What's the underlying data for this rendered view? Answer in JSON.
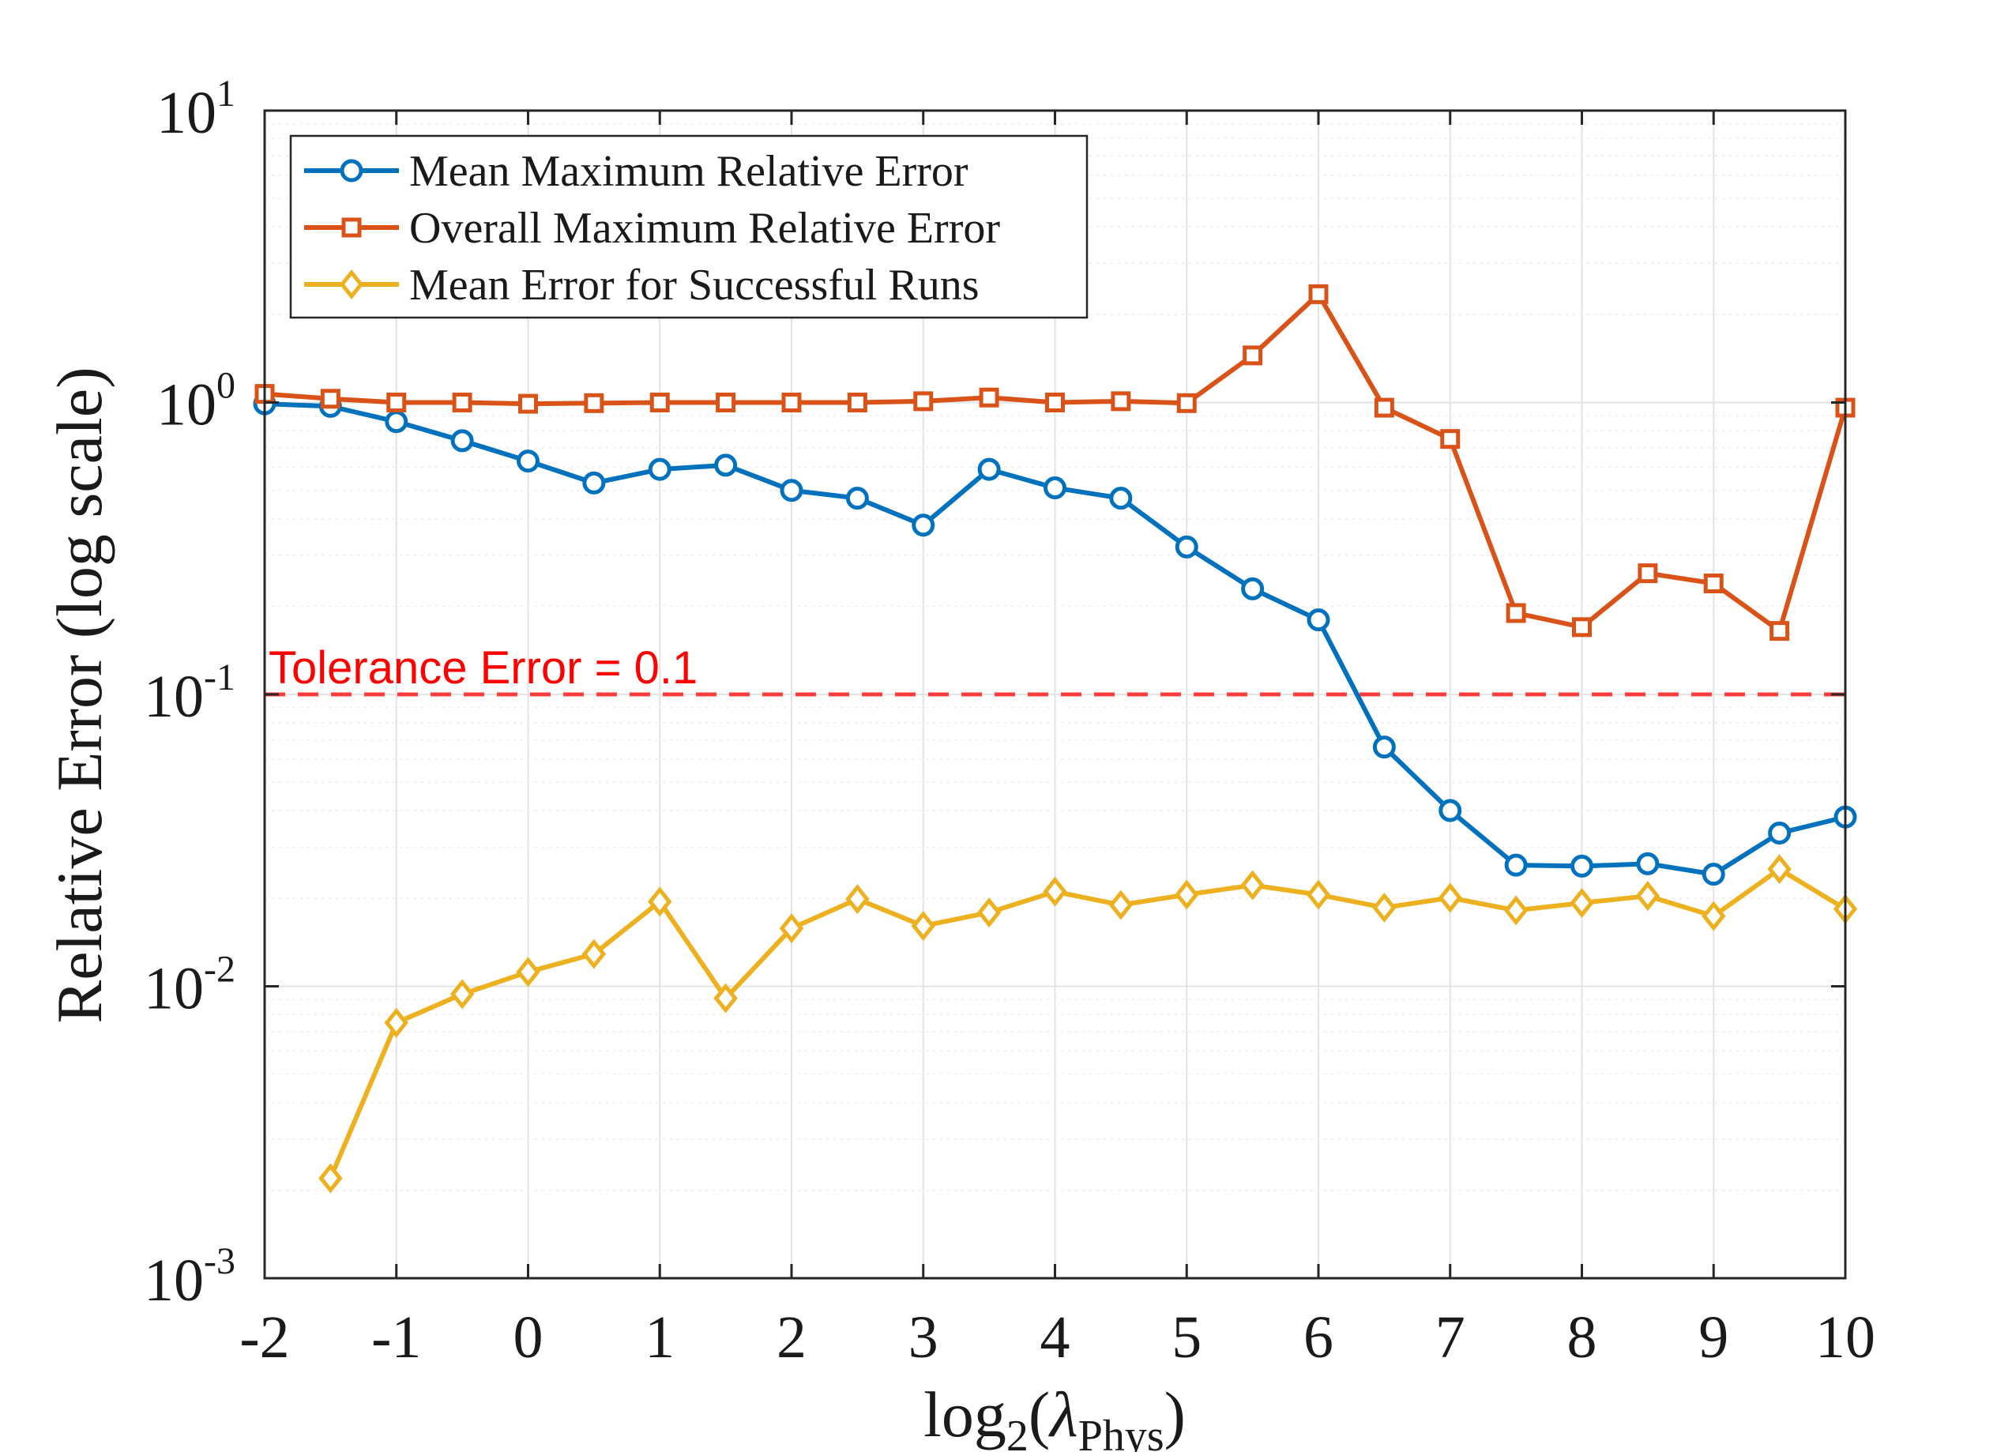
{
  "chart_data": {
    "type": "line",
    "title": "",
    "xlabel": {
      "prefix": "log",
      "sub": "2",
      "open": "(",
      "symbol": "λ",
      "symbol_sub": "Phys",
      "close": ")"
    },
    "ylabel": "Relative Error (log scale)",
    "xlim": [
      -2,
      10
    ],
    "ylim": [
      0.001,
      10
    ],
    "yscale": "log",
    "grid": true,
    "x_ticks": [
      -2,
      -1,
      0,
      1,
      2,
      3,
      4,
      5,
      6,
      7,
      8,
      9,
      10
    ],
    "x_tick_labels": [
      "-2",
      "-1",
      "0",
      "1",
      "2",
      "3",
      "4",
      "5",
      "6",
      "7",
      "8",
      "9",
      "10"
    ],
    "y_ticks": [
      {
        "value": 0.001,
        "base": "10",
        "exp": "-3"
      },
      {
        "value": 0.01,
        "base": "10",
        "exp": "-2"
      },
      {
        "value": 0.1,
        "base": "10",
        "exp": "-1"
      },
      {
        "value": 1,
        "base": "10",
        "exp": "0"
      },
      {
        "value": 10,
        "base": "10",
        "exp": "1"
      }
    ],
    "legend_position": "top-left",
    "series": [
      {
        "name": "Mean Maximum Relative Error",
        "color": "#0072BD",
        "marker": "circle",
        "x": [
          -2,
          -1.5,
          -1,
          -0.5,
          0,
          0.5,
          1,
          1.5,
          2,
          2.5,
          3,
          3.5,
          4,
          4.5,
          5,
          5.5,
          6,
          6.5,
          7,
          7.5,
          8,
          8.5,
          9,
          9.5,
          10
        ],
        "values": [
          0.99,
          0.97,
          0.86,
          0.74,
          0.63,
          0.53,
          0.59,
          0.61,
          0.5,
          0.47,
          0.38,
          0.59,
          0.51,
          0.47,
          0.32,
          0.23,
          0.18,
          0.066,
          0.04,
          0.026,
          0.0258,
          0.0263,
          0.0242,
          0.0335,
          0.038
        ]
      },
      {
        "name": "Overall Maximum Relative Error",
        "color": "#D95319",
        "marker": "square",
        "x": [
          -2,
          -1.5,
          -1,
          -0.5,
          0,
          0.5,
          1,
          1.5,
          2,
          2.5,
          3,
          3.5,
          4,
          4.5,
          5,
          5.5,
          6,
          6.5,
          7,
          7.5,
          8,
          8.5,
          9,
          9.5,
          10
        ],
        "values": [
          1.07,
          1.03,
          1.0,
          1.0,
          0.99,
          0.995,
          1.0,
          1.0,
          1.0,
          1.0,
          1.01,
          1.04,
          1.0,
          1.01,
          0.995,
          1.45,
          2.35,
          0.96,
          0.75,
          0.19,
          0.17,
          0.26,
          0.24,
          0.165,
          0.96
        ]
      },
      {
        "name": "Mean Error for Successful Runs",
        "color": "#EDB120",
        "marker": "diamond",
        "x": [
          -1.5,
          -1,
          -0.5,
          0,
          0.5,
          1,
          1.5,
          2,
          2.5,
          3,
          3.5,
          4,
          4.5,
          5,
          5.5,
          6,
          6.5,
          7,
          7.5,
          8,
          8.5,
          9,
          9.5,
          10
        ],
        "values": [
          0.0022,
          0.0075,
          0.0094,
          0.0112,
          0.0129,
          0.0195,
          0.0091,
          0.0158,
          0.0199,
          0.0161,
          0.0179,
          0.0211,
          0.019,
          0.0206,
          0.0222,
          0.0206,
          0.0186,
          0.0201,
          0.0182,
          0.0193,
          0.0204,
          0.0174,
          0.0252,
          0.0184
        ]
      }
    ],
    "reference_line": {
      "label": "Tolerance Error = 0.1",
      "value": 0.1,
      "color": "#FF0000",
      "style": "dashed"
    }
  }
}
